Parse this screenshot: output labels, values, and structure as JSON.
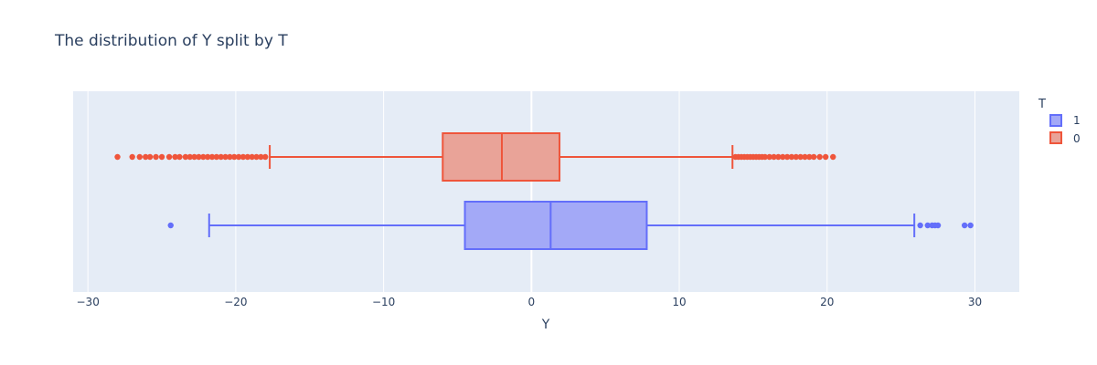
{
  "chart_data": {
    "type": "box",
    "orientation": "horizontal",
    "title": "The distribution of Y split by T",
    "xlabel": "Y",
    "ylabel": "",
    "xlim": [
      -31,
      33
    ],
    "xticks": [
      -30,
      -20,
      -10,
      0,
      10,
      20,
      30
    ],
    "xtick_labels": [
      "−30",
      "−20",
      "−10",
      "0",
      "10",
      "20",
      "30"
    ],
    "grid": true,
    "legend_title": "T",
    "legend_position": "top-right",
    "series": [
      {
        "name": "1",
        "color": "#636efa",
        "fill": "#a3a9f7",
        "whisker_low": -21.8,
        "q1": -4.5,
        "median": 1.3,
        "q3": 7.8,
        "whisker_high": 25.9,
        "outliers": [
          -24.4,
          26.3,
          26.8,
          27.1,
          27.3,
          27.5,
          29.3,
          29.7
        ]
      },
      {
        "name": "0",
        "color": "#ef553b",
        "fill": "#e9a398",
        "whisker_low": -17.7,
        "q1": -6.0,
        "median": -2.0,
        "q3": 1.9,
        "whisker_high": 13.6,
        "outliers": [
          -28.0,
          -27.0,
          -26.5,
          -26.1,
          -25.8,
          -25.4,
          -25.0,
          -24.5,
          -24.1,
          -23.8,
          -23.4,
          -23.1,
          -22.8,
          -22.5,
          -22.2,
          -21.9,
          -21.6,
          -21.3,
          -21.0,
          -20.7,
          -20.4,
          -20.1,
          -19.8,
          -19.5,
          -19.2,
          -18.9,
          -18.6,
          -18.3,
          -18.0,
          13.8,
          14.0,
          14.2,
          14.4,
          14.6,
          14.8,
          15.0,
          15.2,
          15.4,
          15.6,
          15.8,
          16.1,
          16.4,
          16.7,
          17.0,
          17.3,
          17.6,
          17.9,
          18.2,
          18.5,
          18.8,
          19.1,
          19.5,
          19.9,
          20.4
        ]
      }
    ]
  }
}
